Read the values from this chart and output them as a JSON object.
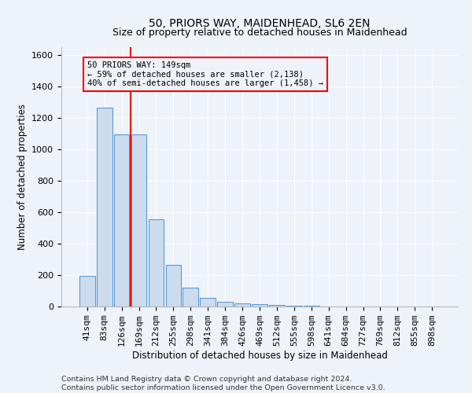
{
  "title": "50, PRIORS WAY, MAIDENHEAD, SL6 2EN",
  "subtitle": "Size of property relative to detached houses in Maidenhead",
  "xlabel": "Distribution of detached houses by size in Maidenhead",
  "ylabel": "Number of detached properties",
  "categories": [
    "41sqm",
    "83sqm",
    "126sqm",
    "169sqm",
    "212sqm",
    "255sqm",
    "298sqm",
    "341sqm",
    "384sqm",
    "426sqm",
    "469sqm",
    "512sqm",
    "555sqm",
    "598sqm",
    "641sqm",
    "684sqm",
    "727sqm",
    "769sqm",
    "812sqm",
    "855sqm",
    "898sqm"
  ],
  "values": [
    195,
    1265,
    1095,
    1095,
    555,
    265,
    120,
    55,
    30,
    22,
    15,
    8,
    5,
    3,
    2,
    2,
    1,
    1,
    1,
    1,
    1
  ],
  "bar_color": "#ccdcec",
  "bar_edge_color": "#5b9bd5",
  "vline_x": 2.5,
  "vline_color": "red",
  "annotation_text": "50 PRIORS WAY: 149sqm\n← 59% of detached houses are smaller (2,138)\n40% of semi-detached houses are larger (1,458) →",
  "annotation_box_color": "red",
  "ylim": [
    0,
    1650
  ],
  "yticks": [
    0,
    200,
    400,
    600,
    800,
    1000,
    1200,
    1400,
    1600
  ],
  "footer_line1": "Contains HM Land Registry data © Crown copyright and database right 2024.",
  "footer_line2": "Contains public sector information licensed under the Open Government Licence v3.0.",
  "bg_color": "#eef2f9",
  "grid_color": "#ffffff",
  "title_fontsize": 10,
  "subtitle_fontsize": 9,
  "axis_label_fontsize": 8.5,
  "tick_fontsize": 8,
  "annotation_fontsize": 7.5,
  "footer_fontsize": 6.8
}
